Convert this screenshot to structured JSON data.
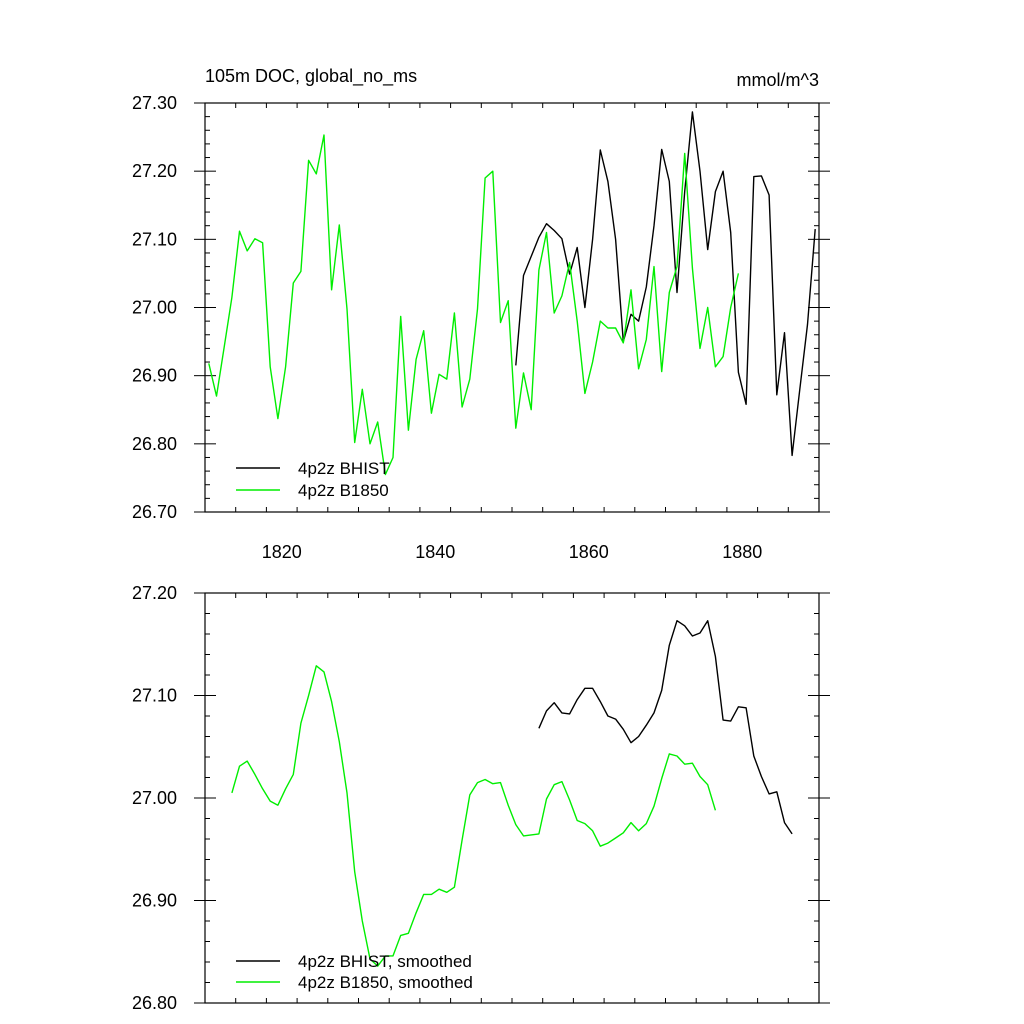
{
  "colors": {
    "bhist": "#000000",
    "b1850": "#00ee00",
    "axis": "#000000",
    "background": "#ffffff"
  },
  "chart_data": [
    {
      "type": "line",
      "panel": "top",
      "title": "105m DOC, global_no_ms",
      "units": "mmol/m^3",
      "xlabel": "",
      "ylabel": "",
      "xlim": [
        1810,
        1890
      ],
      "ylim": [
        26.7,
        27.3
      ],
      "x_ticks": [
        1820,
        1840,
        1860,
        1880
      ],
      "x_tick_labels": [
        "1820",
        "1840",
        "1860",
        "1880"
      ],
      "y_ticks": [
        26.7,
        26.8,
        26.9,
        27.0,
        27.1,
        27.2,
        27.3
      ],
      "y_tick_labels": [
        "26.70",
        "26.80",
        "26.90",
        "27.00",
        "27.10",
        "27.20",
        "27.30"
      ],
      "grid": false,
      "legend_position": "bottom-left",
      "series": [
        {
          "name": "4p2z BHIST",
          "color_key": "bhist",
          "x": [
            1850.5,
            1851.5,
            1852.5,
            1853.5,
            1854.5,
            1855.5,
            1856.5,
            1857.5,
            1858.5,
            1859.5,
            1860.5,
            1861.5,
            1862.5,
            1863.5,
            1864.5,
            1865.5,
            1866.5,
            1867.5,
            1868.5,
            1869.5,
            1870.5,
            1871.5,
            1872.5,
            1873.5,
            1874.5,
            1875.5,
            1876.5,
            1877.5,
            1878.5,
            1879.5,
            1880.5,
            1881.5,
            1882.5,
            1883.5,
            1884.5,
            1885.5,
            1886.5,
            1887.5,
            1888.5,
            1889.5
          ],
          "values": [
            26.915,
            27.047,
            27.075,
            27.103,
            27.123,
            27.113,
            27.101,
            27.049,
            27.088,
            27.0,
            27.1,
            27.231,
            27.185,
            27.1,
            26.95,
            26.99,
            26.98,
            27.03,
            27.12,
            27.232,
            27.185,
            27.022,
            27.17,
            27.287,
            27.2,
            27.085,
            27.17,
            27.2,
            27.11,
            26.905,
            26.858,
            27.192,
            27.193,
            27.165,
            26.872,
            26.963,
            26.783,
            26.88,
            26.975,
            27.115
          ]
        },
        {
          "name": "4p2z B1850",
          "color_key": "b1850",
          "x": [
            1810.5,
            1811.5,
            1812.5,
            1813.5,
            1814.5,
            1815.5,
            1816.5,
            1817.5,
            1818.5,
            1819.5,
            1820.5,
            1821.5,
            1822.5,
            1823.5,
            1824.5,
            1825.5,
            1826.5,
            1827.5,
            1828.5,
            1829.5,
            1830.5,
            1831.5,
            1832.5,
            1833.5,
            1834.5,
            1835.5,
            1836.5,
            1837.5,
            1838.5,
            1839.5,
            1840.5,
            1841.5,
            1842.5,
            1843.5,
            1844.5,
            1845.5,
            1846.5,
            1847.5,
            1848.5,
            1849.5,
            1850.5,
            1851.5,
            1852.5,
            1853.5,
            1854.5,
            1855.5,
            1856.5,
            1857.5,
            1858.5,
            1859.5,
            1860.5,
            1861.5,
            1862.5,
            1863.5,
            1864.5,
            1865.5,
            1866.5,
            1867.5,
            1868.5,
            1869.5,
            1870.5,
            1871.5,
            1872.5,
            1873.5,
            1874.5,
            1875.5,
            1876.5,
            1877.5,
            1878.5,
            1879.5
          ],
          "values": [
            26.918,
            26.87,
            26.942,
            27.015,
            27.112,
            27.083,
            27.101,
            27.095,
            26.913,
            26.837,
            26.913,
            27.036,
            27.053,
            27.216,
            27.196,
            27.253,
            27.026,
            27.121,
            26.998,
            26.802,
            26.88,
            26.8,
            26.832,
            26.755,
            26.78,
            26.987,
            26.82,
            26.924,
            26.966,
            26.845,
            26.902,
            26.895,
            26.992,
            26.854,
            26.895,
            26.998,
            27.19,
            27.2,
            26.978,
            27.01,
            26.823,
            26.904,
            26.85,
            27.055,
            27.11,
            26.992,
            27.017,
            27.066,
            26.98,
            26.874,
            26.92,
            26.98,
            26.97,
            26.97,
            26.948,
            27.026,
            26.91,
            26.953,
            27.06,
            26.906,
            27.022,
            27.06,
            27.226,
            27.058,
            26.94,
            27.0,
            26.913,
            26.928,
            27.0,
            27.05
          ]
        }
      ]
    },
    {
      "type": "line",
      "panel": "bottom",
      "title": "",
      "xlabel": "",
      "ylabel": "",
      "xlim": [
        1810,
        1890
      ],
      "ylim": [
        26.8,
        27.2
      ],
      "x_ticks": [
        1820,
        1840,
        1860,
        1880
      ],
      "y_ticks": [
        26.8,
        26.9,
        27.0,
        27.1,
        27.2
      ],
      "y_tick_labels": [
        "26.80",
        "26.90",
        "27.00",
        "27.10",
        "27.20"
      ],
      "grid": false,
      "legend_position": "bottom-left",
      "series": [
        {
          "name": "4p2z BHIST, smoothed",
          "color_key": "bhist",
          "x": [
            1853.5,
            1854.5,
            1855.5,
            1856.5,
            1857.5,
            1858.5,
            1859.5,
            1860.5,
            1861.5,
            1862.5,
            1863.5,
            1864.5,
            1865.5,
            1866.5,
            1867.5,
            1868.5,
            1869.5,
            1870.5,
            1871.5,
            1872.5,
            1873.5,
            1874.5,
            1875.5,
            1876.5,
            1877.5,
            1878.5,
            1879.5,
            1880.5,
            1881.5,
            1882.5,
            1883.5,
            1884.5,
            1885.5,
            1886.5
          ],
          "values": [
            27.068,
            27.085,
            27.093,
            27.083,
            27.082,
            27.096,
            27.107,
            27.107,
            27.094,
            27.08,
            27.077,
            27.067,
            27.054,
            27.06,
            27.071,
            27.083,
            27.105,
            27.149,
            27.173,
            27.168,
            27.158,
            27.161,
            27.173,
            27.138,
            27.076,
            27.075,
            27.089,
            27.088,
            27.041,
            27.021,
            27.004,
            27.006,
            26.976,
            26.965
          ]
        },
        {
          "name": "4p2z B1850, smoothed",
          "color_key": "b1850",
          "x": [
            1813.5,
            1814.5,
            1815.5,
            1816.5,
            1817.5,
            1818.5,
            1819.5,
            1820.5,
            1821.5,
            1822.5,
            1823.5,
            1824.5,
            1825.5,
            1826.5,
            1827.5,
            1828.5,
            1829.5,
            1830.5,
            1831.5,
            1832.5,
            1833.5,
            1834.5,
            1835.5,
            1836.5,
            1837.5,
            1838.5,
            1839.5,
            1840.5,
            1841.5,
            1842.5,
            1843.5,
            1844.5,
            1845.5,
            1846.5,
            1847.5,
            1848.5,
            1849.5,
            1850.5,
            1851.5,
            1852.5,
            1853.5,
            1854.5,
            1855.5,
            1856.5,
            1857.5,
            1858.5,
            1859.5,
            1860.5,
            1861.5,
            1862.5,
            1863.5,
            1864.5,
            1865.5,
            1866.5,
            1867.5,
            1868.5,
            1869.5,
            1870.5,
            1871.5,
            1872.5,
            1873.5,
            1874.5,
            1875.5,
            1876.5
          ],
          "values": [
            27.005,
            27.031,
            27.036,
            27.023,
            27.009,
            26.997,
            26.993,
            27.009,
            27.023,
            27.073,
            27.1,
            27.129,
            27.123,
            27.094,
            27.055,
            27.005,
            26.928,
            26.88,
            26.843,
            26.836,
            26.846,
            26.846,
            26.866,
            26.868,
            26.888,
            26.906,
            26.906,
            26.911,
            26.908,
            26.913,
            26.959,
            27.003,
            27.015,
            27.018,
            27.014,
            27.015,
            26.993,
            26.974,
            26.963,
            26.964,
            26.965,
            26.999,
            27.013,
            27.016,
            26.998,
            26.978,
            26.975,
            26.968,
            26.953,
            26.956,
            26.961,
            26.966,
            26.976,
            26.968,
            26.975,
            26.992,
            27.019,
            27.043,
            27.041,
            27.033,
            27.034,
            27.021,
            27.013,
            26.988
          ]
        }
      ]
    }
  ]
}
